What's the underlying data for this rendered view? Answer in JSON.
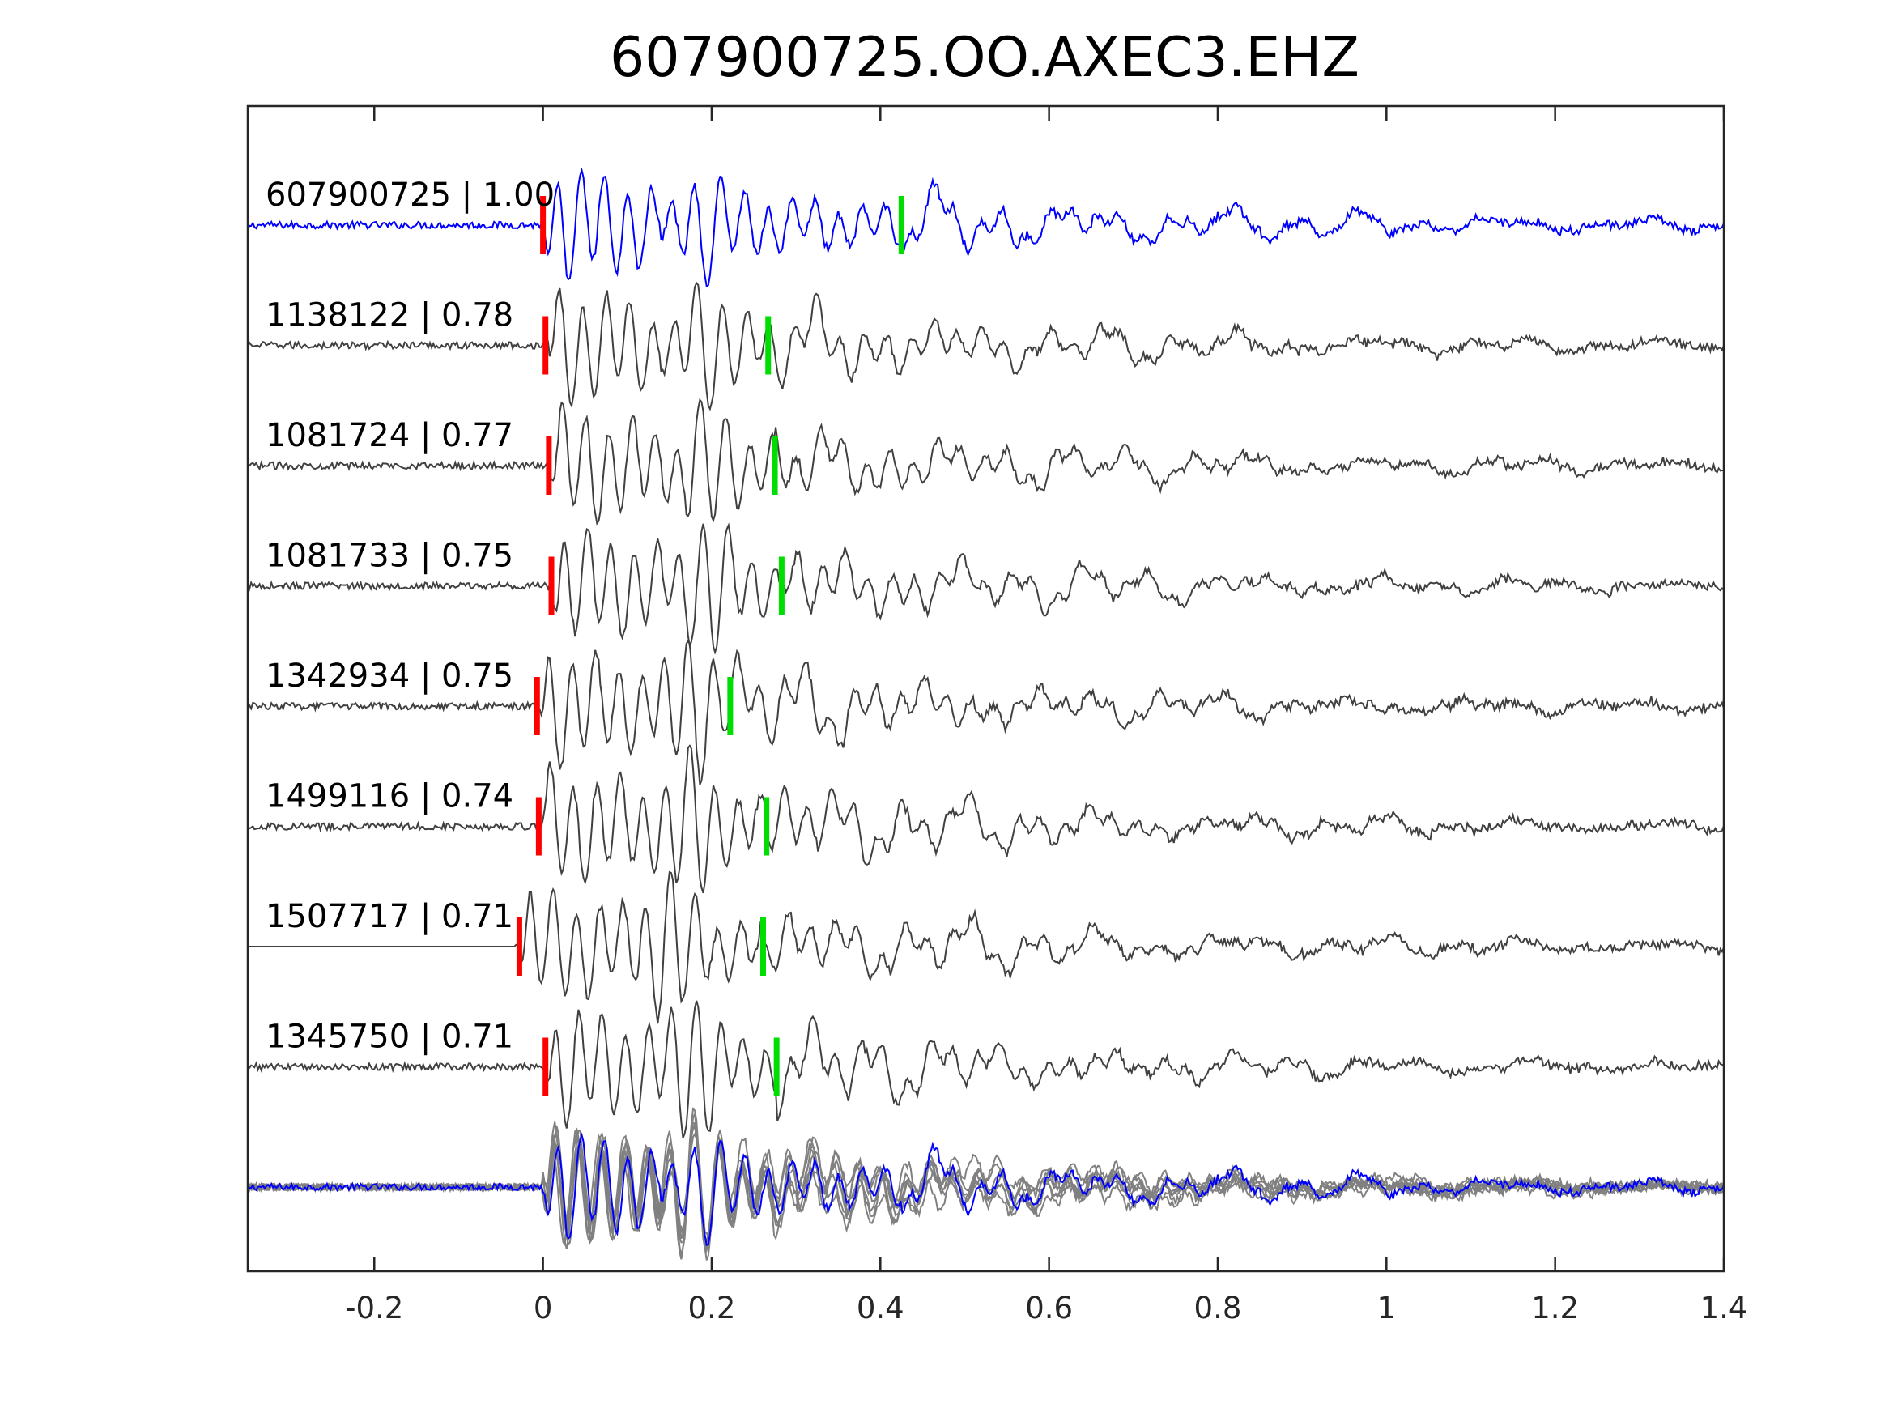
{
  "chart_data": {
    "type": "line",
    "title": "607900725.OO.AXEC3.EHZ",
    "xlabel": "",
    "ylabel": "",
    "xlim": [
      -0.35,
      1.4
    ],
    "xticks": [
      {
        "value": -0.2,
        "label": "-0.2"
      },
      {
        "value": 0,
        "label": "0"
      },
      {
        "value": 0.2,
        "label": "0.2"
      },
      {
        "value": 0.4,
        "label": "0.4"
      },
      {
        "value": 0.6,
        "label": "0.6"
      },
      {
        "value": 0.8,
        "label": "0.8"
      },
      {
        "value": 1.0,
        "label": "1"
      },
      {
        "value": 1.2,
        "label": "1.2"
      },
      {
        "value": 1.4,
        "label": "1.4"
      }
    ],
    "grid": false,
    "legend": "none",
    "colors": {
      "reference_trace": "#0000ff",
      "similar_trace": "#404040",
      "overlay_trace": "#808080",
      "p_pick": "#ff0000",
      "s_pick": "#00dd00",
      "axes": "#262626"
    },
    "traces": [
      {
        "label": "607900725 | 1.00",
        "p_pick": 0.0,
        "s_pick": 0.425,
        "reference": true
      },
      {
        "label": "1138122 | 0.78",
        "p_pick": 0.003,
        "s_pick": 0.267
      },
      {
        "label": "1081724 | 0.77",
        "p_pick": 0.007,
        "s_pick": 0.275
      },
      {
        "label": "1081733 | 0.75",
        "p_pick": 0.01,
        "s_pick": 0.283
      },
      {
        "label": "1342934 | 0.75",
        "p_pick": -0.007,
        "s_pick": 0.222
      },
      {
        "label": "1499116 | 0.74",
        "p_pick": -0.005,
        "s_pick": 0.265
      },
      {
        "label": "1507717 | 0.71",
        "p_pick": -0.028,
        "s_pick": 0.261
      },
      {
        "label": "1345750 | 0.71",
        "p_pick": 0.003,
        "s_pick": 0.277
      }
    ]
  }
}
